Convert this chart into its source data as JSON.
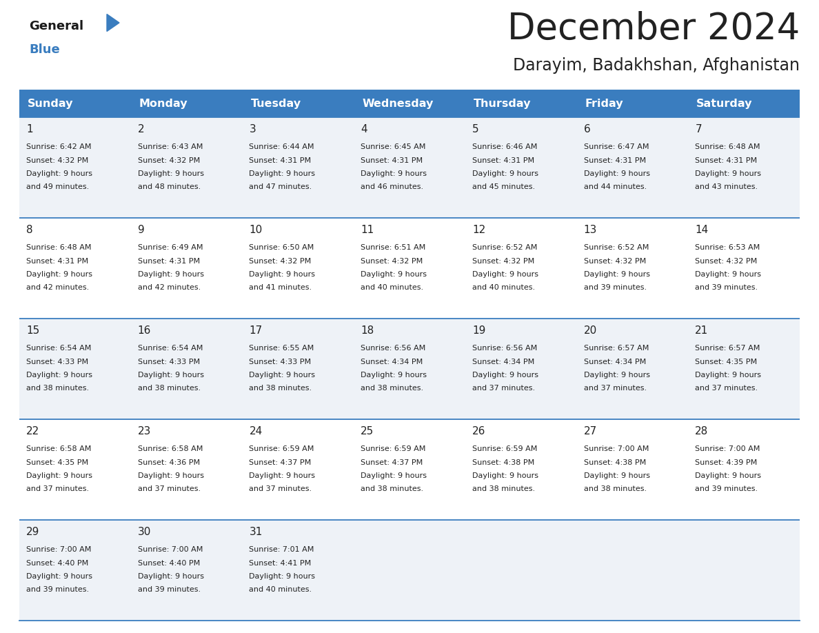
{
  "title": "December 2024",
  "subtitle": "Darayim, Badakhshan, Afghanistan",
  "header_bg_color": "#3a7dbf",
  "header_text_color": "#ffffff",
  "cell_bg_color_odd": "#eef2f7",
  "cell_bg_color_even": "#ffffff",
  "row_line_color": "#3a7dbf",
  "text_color": "#222222",
  "days_of_week": [
    "Sunday",
    "Monday",
    "Tuesday",
    "Wednesday",
    "Thursday",
    "Friday",
    "Saturday"
  ],
  "logo_general_color": "#1a1a1a",
  "logo_blue_color": "#3a7dbf",
  "calendar_data": [
    {
      "week": 1,
      "days": [
        {
          "day": 1,
          "sunrise": "6:42 AM",
          "sunset": "4:32 PM",
          "daylight_hours": 9,
          "daylight_minutes": 49
        },
        {
          "day": 2,
          "sunrise": "6:43 AM",
          "sunset": "4:32 PM",
          "daylight_hours": 9,
          "daylight_minutes": 48
        },
        {
          "day": 3,
          "sunrise": "6:44 AM",
          "sunset": "4:31 PM",
          "daylight_hours": 9,
          "daylight_minutes": 47
        },
        {
          "day": 4,
          "sunrise": "6:45 AM",
          "sunset": "4:31 PM",
          "daylight_hours": 9,
          "daylight_minutes": 46
        },
        {
          "day": 5,
          "sunrise": "6:46 AM",
          "sunset": "4:31 PM",
          "daylight_hours": 9,
          "daylight_minutes": 45
        },
        {
          "day": 6,
          "sunrise": "6:47 AM",
          "sunset": "4:31 PM",
          "daylight_hours": 9,
          "daylight_minutes": 44
        },
        {
          "day": 7,
          "sunrise": "6:48 AM",
          "sunset": "4:31 PM",
          "daylight_hours": 9,
          "daylight_minutes": 43
        }
      ]
    },
    {
      "week": 2,
      "days": [
        {
          "day": 8,
          "sunrise": "6:48 AM",
          "sunset": "4:31 PM",
          "daylight_hours": 9,
          "daylight_minutes": 42
        },
        {
          "day": 9,
          "sunrise": "6:49 AM",
          "sunset": "4:31 PM",
          "daylight_hours": 9,
          "daylight_minutes": 42
        },
        {
          "day": 10,
          "sunrise": "6:50 AM",
          "sunset": "4:32 PM",
          "daylight_hours": 9,
          "daylight_minutes": 41
        },
        {
          "day": 11,
          "sunrise": "6:51 AM",
          "sunset": "4:32 PM",
          "daylight_hours": 9,
          "daylight_minutes": 40
        },
        {
          "day": 12,
          "sunrise": "6:52 AM",
          "sunset": "4:32 PM",
          "daylight_hours": 9,
          "daylight_minutes": 40
        },
        {
          "day": 13,
          "sunrise": "6:52 AM",
          "sunset": "4:32 PM",
          "daylight_hours": 9,
          "daylight_minutes": 39
        },
        {
          "day": 14,
          "sunrise": "6:53 AM",
          "sunset": "4:32 PM",
          "daylight_hours": 9,
          "daylight_minutes": 39
        }
      ]
    },
    {
      "week": 3,
      "days": [
        {
          "day": 15,
          "sunrise": "6:54 AM",
          "sunset": "4:33 PM",
          "daylight_hours": 9,
          "daylight_minutes": 38
        },
        {
          "day": 16,
          "sunrise": "6:54 AM",
          "sunset": "4:33 PM",
          "daylight_hours": 9,
          "daylight_minutes": 38
        },
        {
          "day": 17,
          "sunrise": "6:55 AM",
          "sunset": "4:33 PM",
          "daylight_hours": 9,
          "daylight_minutes": 38
        },
        {
          "day": 18,
          "sunrise": "6:56 AM",
          "sunset": "4:34 PM",
          "daylight_hours": 9,
          "daylight_minutes": 38
        },
        {
          "day": 19,
          "sunrise": "6:56 AM",
          "sunset": "4:34 PM",
          "daylight_hours": 9,
          "daylight_minutes": 37
        },
        {
          "day": 20,
          "sunrise": "6:57 AM",
          "sunset": "4:34 PM",
          "daylight_hours": 9,
          "daylight_minutes": 37
        },
        {
          "day": 21,
          "sunrise": "6:57 AM",
          "sunset": "4:35 PM",
          "daylight_hours": 9,
          "daylight_minutes": 37
        }
      ]
    },
    {
      "week": 4,
      "days": [
        {
          "day": 22,
          "sunrise": "6:58 AM",
          "sunset": "4:35 PM",
          "daylight_hours": 9,
          "daylight_minutes": 37
        },
        {
          "day": 23,
          "sunrise": "6:58 AM",
          "sunset": "4:36 PM",
          "daylight_hours": 9,
          "daylight_minutes": 37
        },
        {
          "day": 24,
          "sunrise": "6:59 AM",
          "sunset": "4:37 PM",
          "daylight_hours": 9,
          "daylight_minutes": 37
        },
        {
          "day": 25,
          "sunrise": "6:59 AM",
          "sunset": "4:37 PM",
          "daylight_hours": 9,
          "daylight_minutes": 38
        },
        {
          "day": 26,
          "sunrise": "6:59 AM",
          "sunset": "4:38 PM",
          "daylight_hours": 9,
          "daylight_minutes": 38
        },
        {
          "day": 27,
          "sunrise": "7:00 AM",
          "sunset": "4:38 PM",
          "daylight_hours": 9,
          "daylight_minutes": 38
        },
        {
          "day": 28,
          "sunrise": "7:00 AM",
          "sunset": "4:39 PM",
          "daylight_hours": 9,
          "daylight_minutes": 39
        }
      ]
    },
    {
      "week": 5,
      "days": [
        {
          "day": 29,
          "sunrise": "7:00 AM",
          "sunset": "4:40 PM",
          "daylight_hours": 9,
          "daylight_minutes": 39
        },
        {
          "day": 30,
          "sunrise": "7:00 AM",
          "sunset": "4:40 PM",
          "daylight_hours": 9,
          "daylight_minutes": 39
        },
        {
          "day": 31,
          "sunrise": "7:01 AM",
          "sunset": "4:41 PM",
          "daylight_hours": 9,
          "daylight_minutes": 40
        }
      ]
    }
  ],
  "fig_width": 11.88,
  "fig_height": 9.18,
  "dpi": 100
}
